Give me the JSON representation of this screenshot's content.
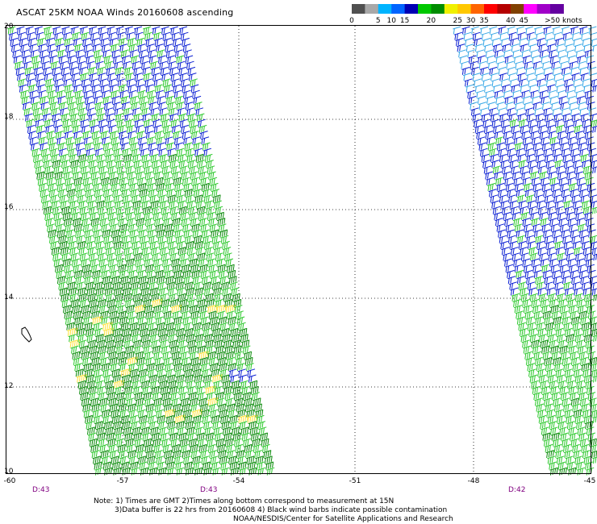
{
  "title": "ASCAT 25KM NOAA Winds 20160608 ascending",
  "legend": {
    "bins": [
      {
        "label": "0",
        "color": "#505050"
      },
      {
        "label": "",
        "color": "#a8a8a8"
      },
      {
        "label": "5",
        "color": "#00b4ff"
      },
      {
        "label": "10",
        "color": "#0064ff"
      },
      {
        "label": "15",
        "color": "#0000b4"
      },
      {
        "label": "",
        "color": "#00c800"
      },
      {
        "label": "20",
        "color": "#008c00"
      },
      {
        "label": "",
        "color": "#f0f000"
      },
      {
        "label": "25",
        "color": "#ffc800"
      },
      {
        "label": "30",
        "color": "#ff6400"
      },
      {
        "label": "35",
        "color": "#ff0000"
      },
      {
        "label": "",
        "color": "#b40000"
      },
      {
        "label": "40",
        "color": "#804000"
      },
      {
        "label": "45",
        "color": "#ff00ff"
      },
      {
        "label": "",
        "color": "#a000c8"
      },
      {
        "label": "",
        "color": "#6400a0"
      }
    ],
    "end_label": ">50 knots"
  },
  "latitudes": [
    "20",
    "18",
    "16",
    "14",
    "12",
    "10"
  ],
  "longitudes": [
    "-60",
    "-57",
    "-54",
    "-51",
    "-48",
    "-45"
  ],
  "pass_times": [
    "D:43",
    "D:43",
    "D:42"
  ],
  "notes": [
    "Note: 1) Times are GMT 2)Times along bottom correspond to measurement at 15N",
    "3)Data buffer is 22 hrs from 20160608 4) Black wind barbs indicate possible contamination",
    "NOAA/NESDIS/Center for Satellite Applications and Research"
  ],
  "wind_colors": {
    "lt10": "#39a8e6",
    "10to15": "#0a1ed2",
    "15to20": "#2cc82c",
    "20to25": "#0a8a0a",
    "25to30": "#ffe23c"
  }
}
